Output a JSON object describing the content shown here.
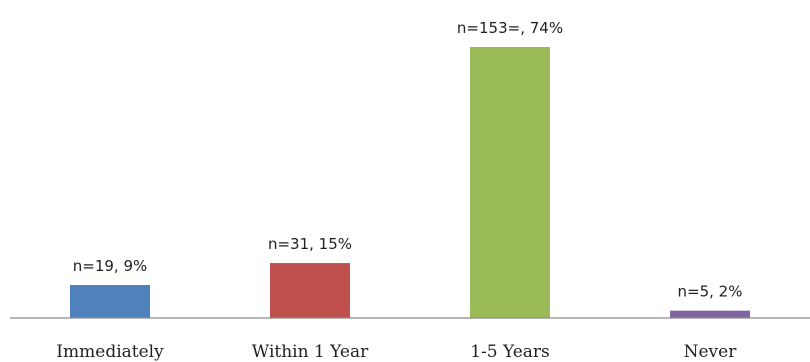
{
  "chart_data": {
    "type": "bar",
    "categories": [
      "Immediately",
      "Within 1 Year",
      "1-5 Years",
      "Never"
    ],
    "values": [
      9,
      15,
      74,
      2
    ],
    "data_labels": [
      "n=19, 9%",
      "n=31, 15%",
      "n=153=, 74%",
      "n=5, 2%"
    ],
    "colors": [
      "#4f81bd",
      "#c0504d",
      "#9bbb59",
      "#8064a2"
    ],
    "title": "",
    "xlabel": "",
    "ylabel": "",
    "ylim": [
      0,
      74
    ],
    "grid": false,
    "legend": "none"
  }
}
